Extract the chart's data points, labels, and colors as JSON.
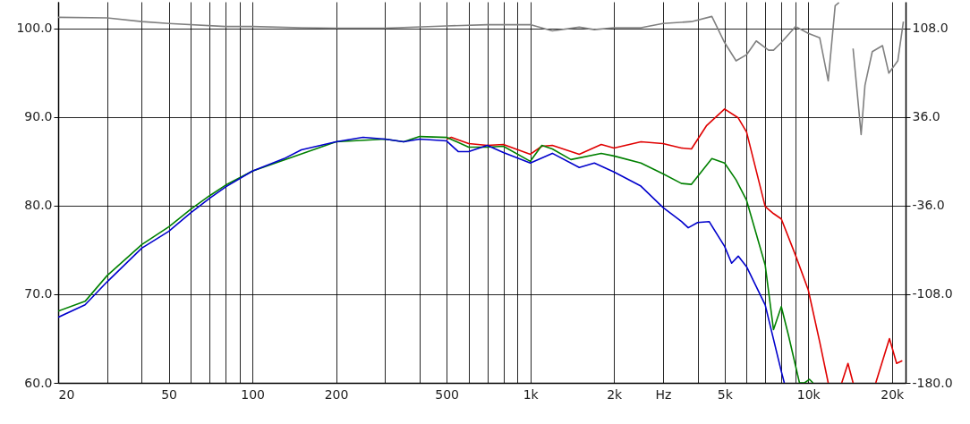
{
  "chart_data": {
    "type": "line",
    "log": "x",
    "grid": true,
    "xlim": [
      20,
      22400
    ],
    "ylim": [
      60,
      103
    ],
    "y2lim": [
      -180,
      129.6
    ],
    "xticks": [
      20,
      {
        "value": 30,
        "label": null
      },
      {
        "value": 40,
        "label": null
      },
      50,
      {
        "value": 60,
        "label": null
      },
      {
        "value": 70,
        "label": null
      },
      {
        "value": 80,
        "label": null
      },
      {
        "value": 90,
        "label": null
      },
      100,
      200,
      {
        "value": 300,
        "label": null
      },
      {
        "value": 400,
        "label": null
      },
      500,
      {
        "value": 600,
        "label": null
      },
      {
        "value": 700,
        "label": null
      },
      {
        "value": 800,
        "label": null
      },
      {
        "value": 900,
        "label": null
      },
      {
        "value": 1000,
        "label": "1k"
      },
      {
        "value": 2000,
        "label": "2k"
      },
      {
        "value": 3000,
        "label": "Hz"
      },
      {
        "value": 4000,
        "label": null
      },
      {
        "value": 5000,
        "label": "5k"
      },
      {
        "value": 6000,
        "label": null
      },
      {
        "value": 7000,
        "label": null
      },
      {
        "value": 8000,
        "label": null
      },
      {
        "value": 9000,
        "label": null
      },
      {
        "value": 10000,
        "label": "10k"
      },
      {
        "value": 20000,
        "label": "20k"
      }
    ],
    "yticks": [
      {
        "value": 60,
        "label": "60.0"
      },
      {
        "value": 70,
        "label": "70.0"
      },
      {
        "value": 80,
        "label": "80.0"
      },
      {
        "value": 90,
        "label": "90.0"
      },
      {
        "value": 100,
        "label": "100.0"
      }
    ],
    "y2ticks": [
      {
        "value": -180,
        "label": "-180.0"
      },
      {
        "value": -108,
        "label": "-108.0"
      },
      {
        "value": -36,
        "label": "-36.0"
      },
      {
        "value": 36,
        "label": "36.0"
      },
      {
        "value": 108,
        "label": "108.0"
      }
    ],
    "series": [
      {
        "color": "#e00000",
        "x": [
          500,
          520,
          600,
          700,
          800,
          1000,
          1100,
          1200,
          1500,
          1800,
          2000,
          2500,
          3000,
          3500,
          3800,
          4300,
          5000,
          5600,
          6000,
          7000,
          7500,
          8000,
          9000,
          10000,
          11000,
          11800,
          12500,
          13200,
          13900,
          14500,
          16000,
          17500,
          19600,
          20800,
          21800
        ],
        "values": [
          87.5,
          87.7,
          87.0,
          86.8,
          86.9,
          85.8,
          86.7,
          86.8,
          85.8,
          86.9,
          86.5,
          87.2,
          87.0,
          86.5,
          86.4,
          89.0,
          90.9,
          89.9,
          88.3,
          79.9,
          79.1,
          78.5,
          74.4,
          70.5,
          64.6,
          60.0,
          null,
          60.0,
          62.2,
          60.0,
          null,
          60.0,
          65.0,
          62.2,
          62.5
        ]
      },
      {
        "color": "#008000",
        "x": [
          20,
          25,
          30,
          40,
          50,
          60,
          70,
          80,
          100,
          200,
          300,
          350,
          400,
          500,
          600,
          700,
          800,
          1000,
          1100,
          1200,
          1400,
          1800,
          2000,
          2500,
          3000,
          3500,
          3800,
          4500,
          5000,
          5500,
          6000,
          7000,
          7500,
          8000,
          8500,
          9300,
          9700,
          10100,
          10400
        ],
        "values": [
          68.1,
          69.2,
          72.1,
          75.6,
          77.6,
          79.6,
          81.1,
          82.3,
          83.9,
          87.2,
          87.5,
          87.2,
          87.8,
          87.7,
          86.6,
          86.6,
          86.7,
          85.0,
          86.8,
          86.4,
          85.2,
          85.9,
          85.6,
          84.8,
          83.6,
          82.5,
          82.4,
          85.3,
          84.8,
          82.9,
          80.6,
          73.3,
          66.0,
          68.6,
          65.3,
          60.0,
          60.0,
          60.4,
          60.0
        ]
      },
      {
        "color": "#0000cc",
        "x": [
          20,
          25,
          30,
          40,
          50,
          60,
          70,
          80,
          100,
          130,
          150,
          200,
          250,
          300,
          350,
          400,
          500,
          550,
          600,
          700,
          800,
          1000,
          1200,
          1500,
          1700,
          2000,
          2500,
          3000,
          3500,
          3700,
          4000,
          4400,
          5000,
          5300,
          5600,
          6000,
          7000,
          8000,
          8200
        ],
        "values": [
          67.4,
          68.8,
          71.4,
          75.2,
          77.1,
          79.2,
          80.8,
          82.1,
          83.9,
          85.3,
          86.3,
          87.2,
          87.7,
          87.5,
          87.2,
          87.5,
          87.3,
          86.1,
          86.1,
          86.8,
          86.0,
          84.8,
          85.9,
          84.3,
          84.8,
          83.8,
          82.2,
          79.8,
          78.2,
          77.5,
          78.1,
          78.2,
          75.4,
          73.5,
          74.3,
          73.1,
          68.8,
          61.3,
          60.0
        ]
      },
      {
        "color": "#808080",
        "axis": "y2",
        "x": [
          20,
          30,
          40,
          50,
          80,
          100,
          150,
          200,
          300,
          500,
          700,
          1000,
          1200,
          1500,
          1700,
          2000,
          2500,
          3000,
          3800,
          4500,
          5000,
          5500,
          6000,
          6500,
          7200,
          7500,
          8000,
          9000,
          10000,
          11000,
          11800,
          12500,
          12900,
          13800,
          14500,
          15500,
          16000,
          17000,
          18500,
          19500,
          21000,
          22000
        ],
        "values": [
          117.0,
          116.5,
          113.5,
          112.0,
          109.5,
          109.5,
          108.5,
          108.2,
          108.2,
          110.0,
          111.0,
          111.0,
          106.0,
          109.0,
          107.0,
          108.5,
          108.5,
          112.0,
          113.5,
          117.7,
          96.5,
          81.6,
          86.6,
          97.8,
          90.3,
          90.3,
          96.5,
          109.5,
          104.0,
          100.3,
          65.4,
          126.4,
          129.0,
          null,
          91.6,
          21.8,
          61.7,
          89.1,
          94.0,
          71.6,
          81.6,
          113.5
        ]
      }
    ]
  }
}
